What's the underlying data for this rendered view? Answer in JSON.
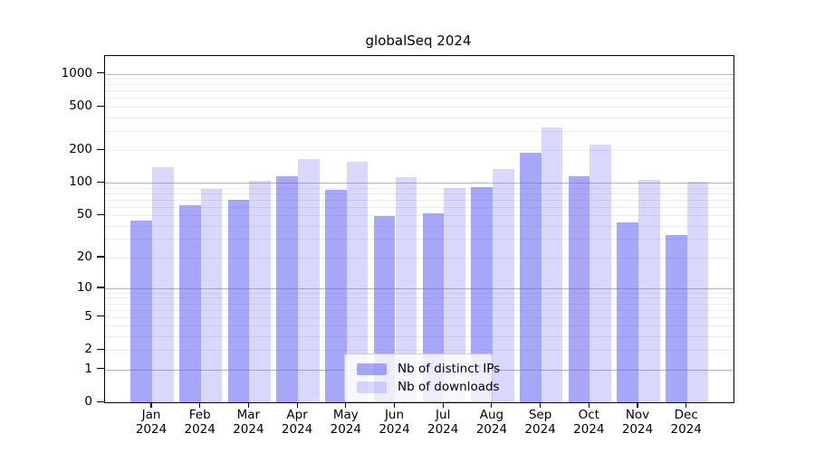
{
  "chart_data": {
    "type": "bar",
    "title": "globalSeq 2024",
    "categories": [
      "Jan 2024",
      "Feb 2024",
      "Mar 2024",
      "Apr 2024",
      "May 2024",
      "Jun 2024",
      "Jul 2024",
      "Aug 2024",
      "Sep 2024",
      "Oct 2024",
      "Nov 2024",
      "Dec 2024"
    ],
    "series": [
      {
        "name": "Nb of distinct IPs",
        "color": "rgba(100,100,245,0.57)",
        "values": [
          45,
          62,
          70,
          114,
          86,
          49,
          52,
          92,
          188,
          114,
          43,
          33
        ]
      },
      {
        "name": "Nb of downloads",
        "color": "rgba(100,100,245,0.25)",
        "values": [
          139,
          88,
          104,
          167,
          155,
          113,
          90,
          134,
          325,
          226,
          106,
          103
        ]
      }
    ],
    "yticks": [
      0,
      1,
      2,
      5,
      10,
      20,
      50,
      100,
      200,
      500,
      1000
    ],
    "y_scale": "log1p",
    "ylim": [
      0,
      1450
    ],
    "xlabel": "",
    "ylabel": "",
    "grid": "horizontal",
    "grid_major": [
      1,
      10,
      100,
      1000
    ],
    "grid_minor": [
      2,
      3,
      4,
      5,
      6,
      7,
      8,
      9,
      20,
      30,
      40,
      50,
      60,
      70,
      80,
      90,
      200,
      300,
      400,
      500,
      600,
      700,
      800,
      900
    ],
    "legend_position": "bottom-center"
  },
  "colors": {
    "background": "#ffffff",
    "plot_border": "#000000",
    "grid_major": "#b4b4b4",
    "grid_minor": "#ececec",
    "bar_base": "#6464f5"
  }
}
